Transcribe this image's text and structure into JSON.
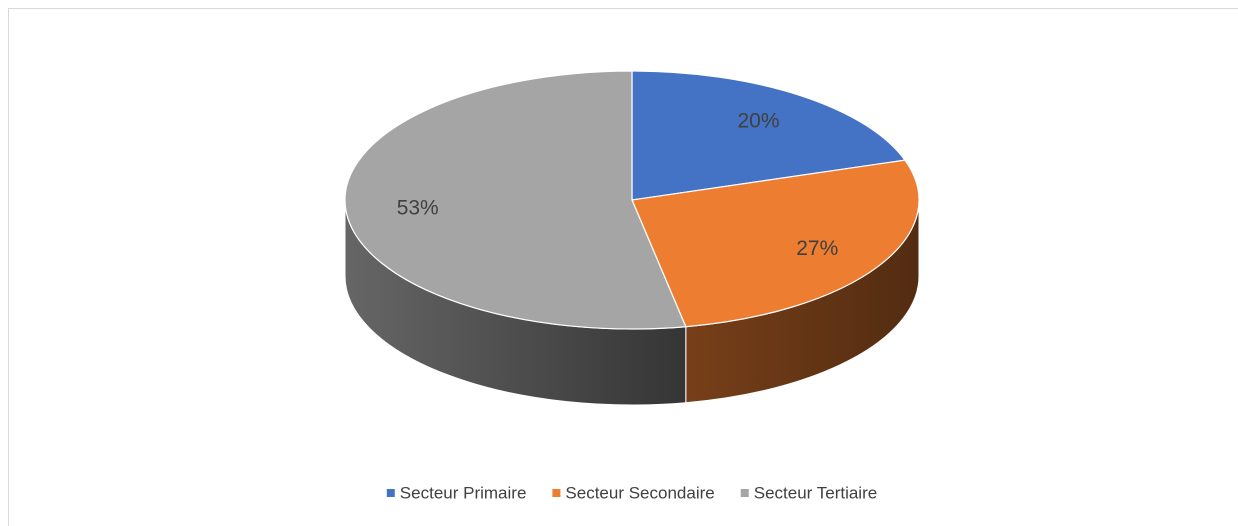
{
  "chart_data": {
    "type": "pie",
    "categories": [
      "Secteur Primaire",
      "Secteur Secondaire",
      "Secteur Tertiaire"
    ],
    "values": [
      20,
      27,
      53
    ],
    "value_labels": [
      "20%",
      "27%",
      "53%"
    ],
    "colors": [
      "#4472c4",
      "#ed7d31",
      "#a5a5a5"
    ],
    "legend": "bottom"
  }
}
